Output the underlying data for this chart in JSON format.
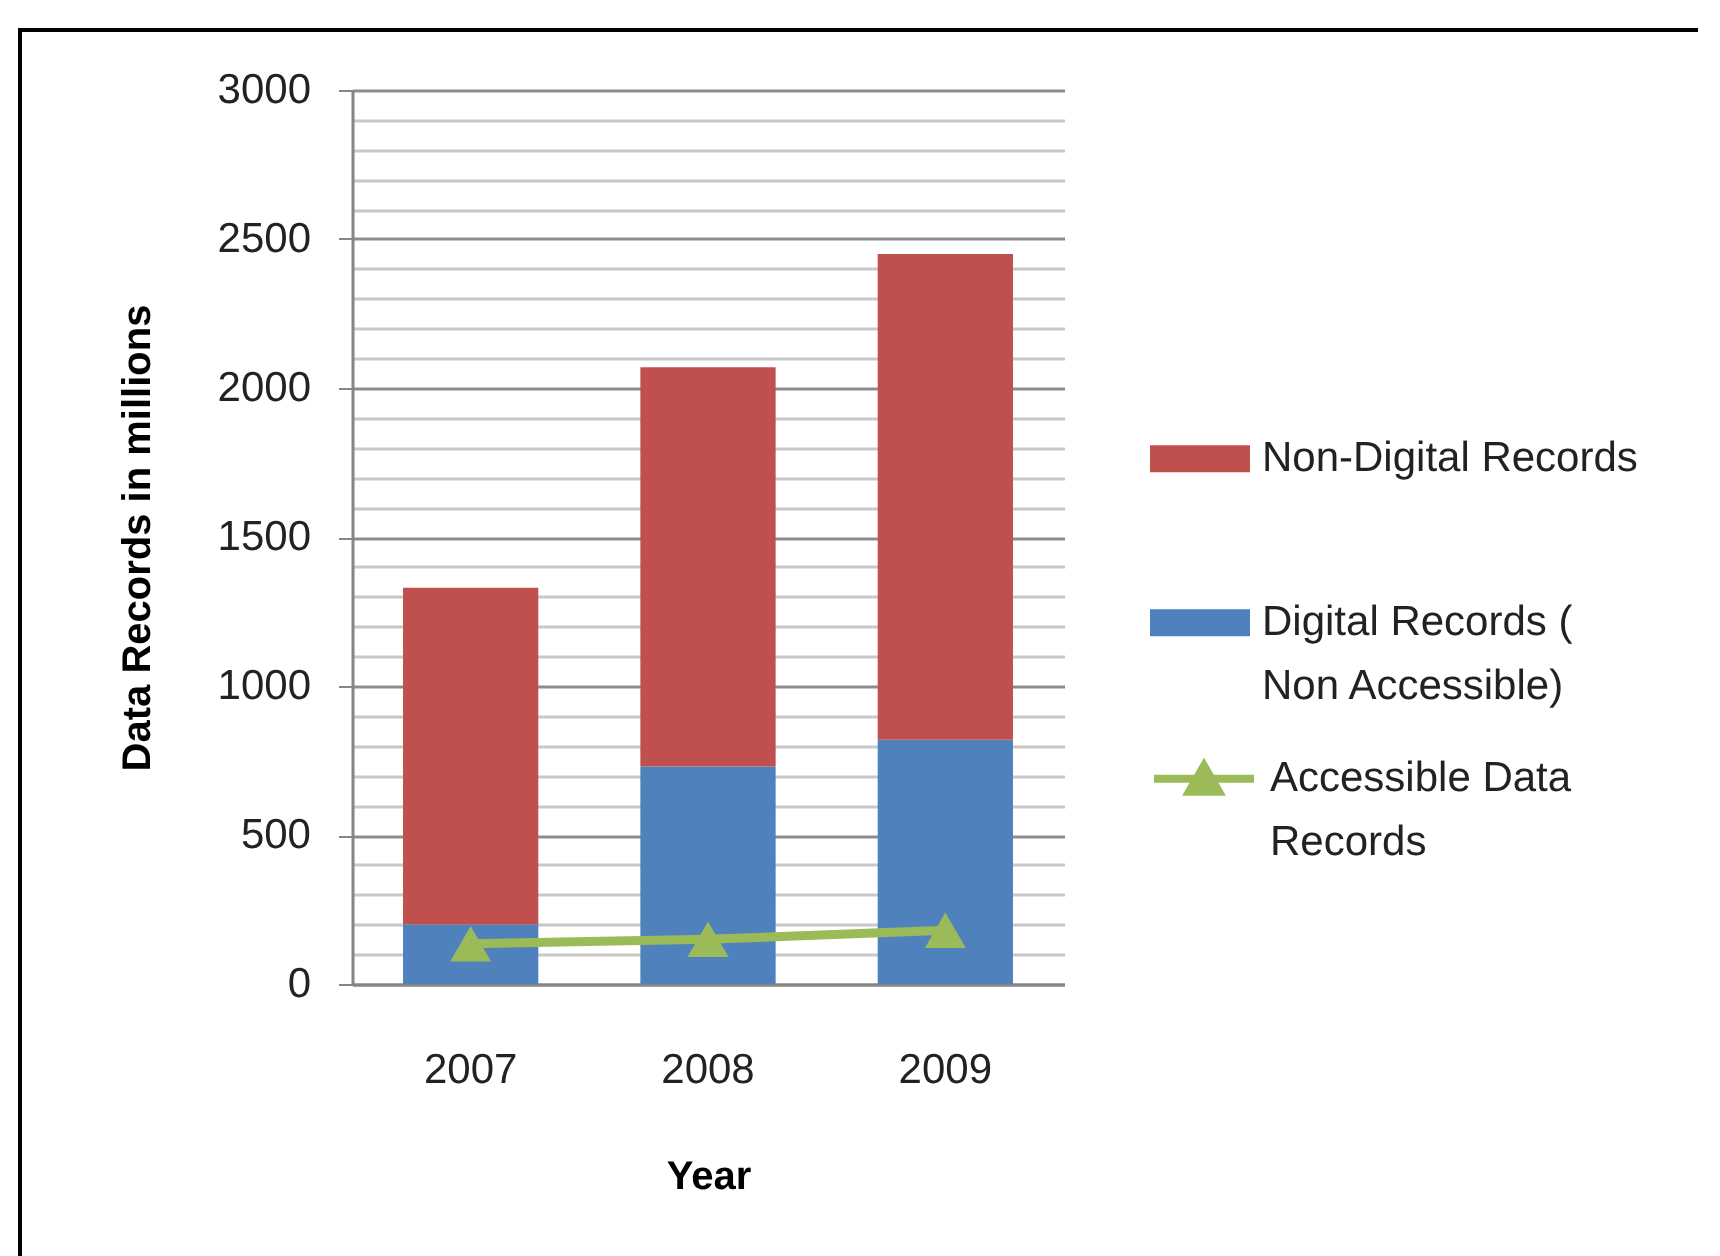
{
  "chart_data": {
    "type": "bar",
    "stacked": true,
    "xlabel": "Year",
    "ylabel": "Data Records in millions",
    "categories": [
      "2007",
      "2008",
      "2009"
    ],
    "series": [
      {
        "name": "Digital Records ( Non Accessible)",
        "color": "#4f81bd",
        "values": [
          200,
          730,
          820
        ]
      },
      {
        "name": "Non-Digital Records",
        "color": "#c0504d",
        "values": [
          1130,
          1340,
          1630
        ]
      },
      {
        "name": "Accessible Data Records",
        "type": "line",
        "color": "#9bbb59",
        "values": [
          135,
          150,
          180
        ]
      }
    ],
    "ylim": [
      0,
      3000
    ],
    "yticks": [
      0,
      {
        "value": 100,
        "label": null
      },
      {
        "value": 200,
        "label": null
      },
      {
        "value": 300,
        "label": null
      },
      {
        "value": 400,
        "label": null
      },
      500,
      {
        "value": 600,
        "label": null
      },
      {
        "value": 700,
        "label": null
      },
      {
        "value": 800,
        "label": null
      },
      {
        "value": 900,
        "label": null
      },
      1000,
      {
        "value": 1100,
        "label": null
      },
      {
        "value": 1200,
        "label": null
      },
      {
        "value": 1300,
        "label": null
      },
      {
        "value": 1400,
        "label": null
      },
      1500,
      {
        "value": 1600,
        "label": null
      },
      {
        "value": 1700,
        "label": null
      },
      {
        "value": 1800,
        "label": null
      },
      {
        "value": 1900,
        "label": null
      },
      2000,
      {
        "value": 2100,
        "label": null
      },
      {
        "value": 2200,
        "label": null
      },
      {
        "value": 2300,
        "label": null
      },
      {
        "value": 2400,
        "label": null
      },
      2500,
      {
        "value": 2600,
        "label": null
      },
      {
        "value": 2700,
        "label": null
      },
      {
        "value": 2800,
        "label": null
      },
      {
        "value": 2900,
        "label": null
      },
      3000
    ],
    "grid": "y",
    "legend": "right",
    "marker": "triangle"
  }
}
